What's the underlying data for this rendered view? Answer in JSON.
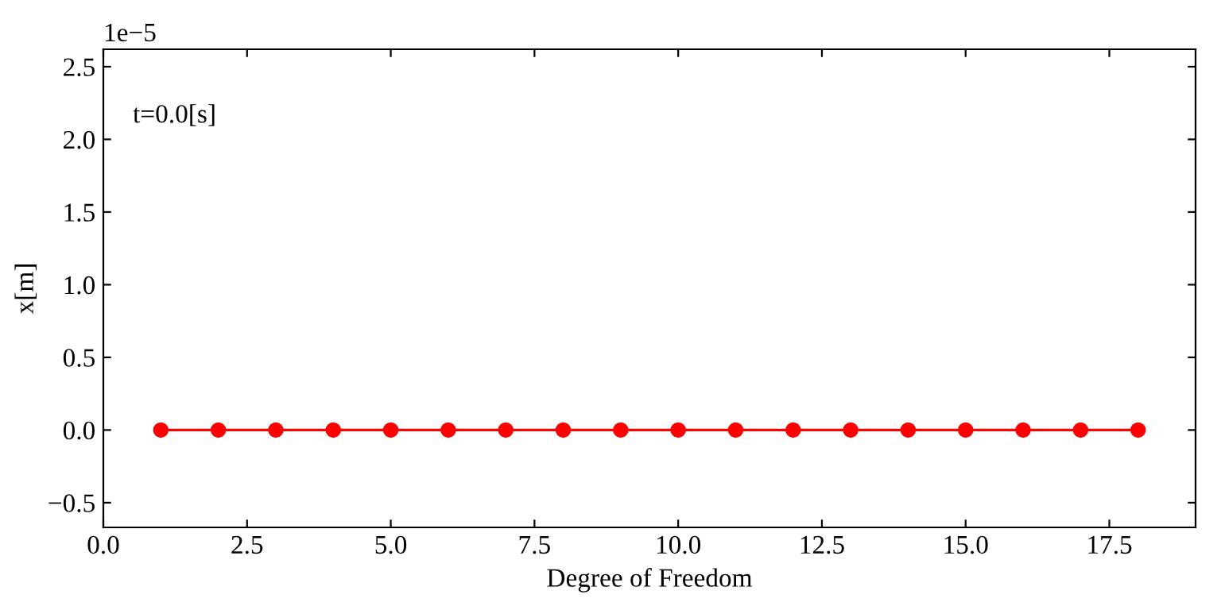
{
  "chart_data": {
    "type": "line",
    "xlabel": "Degree of Freedom",
    "ylabel": "x[m]",
    "x": [
      1,
      2,
      3,
      4,
      5,
      6,
      7,
      8,
      9,
      10,
      11,
      12,
      13,
      14,
      15,
      16,
      17,
      18
    ],
    "series": [
      {
        "color": "#ff0000",
        "values": [
          0,
          0,
          0,
          0,
          0,
          0,
          0,
          0,
          0,
          0,
          0,
          0,
          0,
          0,
          0,
          0,
          0,
          0
        ]
      }
    ],
    "marker": "circle",
    "line_style": "solid",
    "xlim": [
      0,
      19
    ],
    "xticks": [
      {
        "value": 0,
        "label": "0.0"
      },
      2.5,
      {
        "value": 5,
        "label": "5.0"
      },
      7.5,
      {
        "value": 10,
        "label": "10.0"
      },
      12.5,
      {
        "value": 15,
        "label": "15.0"
      },
      17.5
    ],
    "ylim": [
      -0.67,
      2.62
    ],
    "yticks": [
      {
        "value": -0.5,
        "label": "−0.5"
      },
      {
        "value": 0,
        "label": "0.0"
      },
      0.5,
      {
        "value": 1,
        "label": "1.0"
      },
      1.5,
      {
        "value": 2,
        "label": "2.0"
      },
      2.5
    ],
    "grid": false,
    "legend": false,
    "annotations": [
      "1e−5",
      "t=0.0[s]"
    ]
  }
}
